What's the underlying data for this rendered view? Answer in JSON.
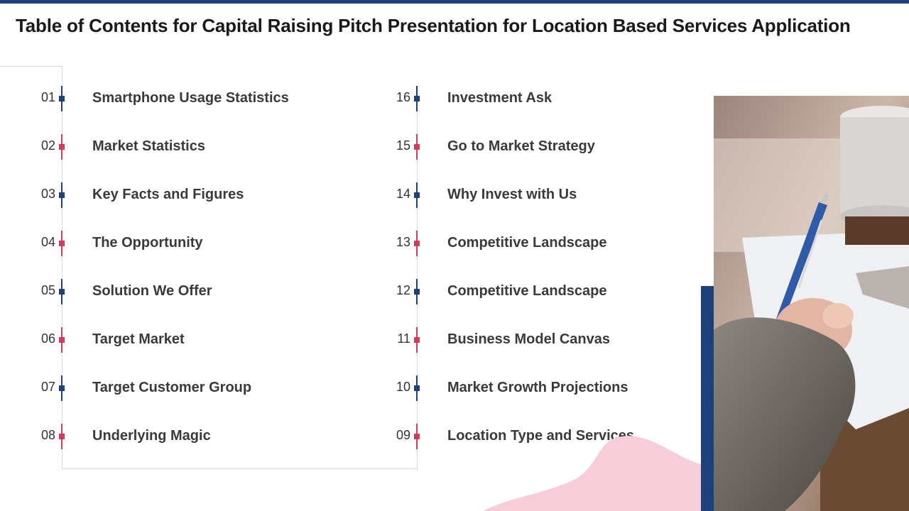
{
  "title": "Table of Contents for Capital Raising Pitch Presentation for Location Based Services Application",
  "colors": {
    "navy": "#1d3f7a",
    "pink": "#d23c5a",
    "blob": "#f7cdd9"
  },
  "left_items": [
    {
      "num": "01",
      "label": "Smartphone Usage Statistics",
      "marker": "blue"
    },
    {
      "num": "02",
      "label": "Market Statistics",
      "marker": "pink"
    },
    {
      "num": "03",
      "label": "Key Facts and Figures",
      "marker": "blue"
    },
    {
      "num": "04",
      "label": "The Opportunity",
      "marker": "pink"
    },
    {
      "num": "05",
      "label": "Solution We Offer",
      "marker": "blue"
    },
    {
      "num": "06",
      "label": "Target Market",
      "marker": "pink"
    },
    {
      "num": "07",
      "label": "Target Customer Group",
      "marker": "blue"
    },
    {
      "num": "08",
      "label": "Underlying Magic",
      "marker": "pink"
    }
  ],
  "right_items": [
    {
      "num": "16",
      "label": "Investment Ask",
      "marker": "blue"
    },
    {
      "num": "15",
      "label": "Go to Market Strategy",
      "marker": "pink"
    },
    {
      "num": "14",
      "label": "Why Invest with Us",
      "marker": "blue"
    },
    {
      "num": "13",
      "label": "Competitive Landscape",
      "marker": "pink"
    },
    {
      "num": "12",
      "label": "Competitive Landscape",
      "marker": "blue"
    },
    {
      "num": "11",
      "label": "Business Model Canvas",
      "marker": "pink"
    },
    {
      "num": "10",
      "label": "Market Growth Projections",
      "marker": "blue"
    },
    {
      "num": "09",
      "label": "Location Type and Services",
      "marker": "pink"
    }
  ]
}
